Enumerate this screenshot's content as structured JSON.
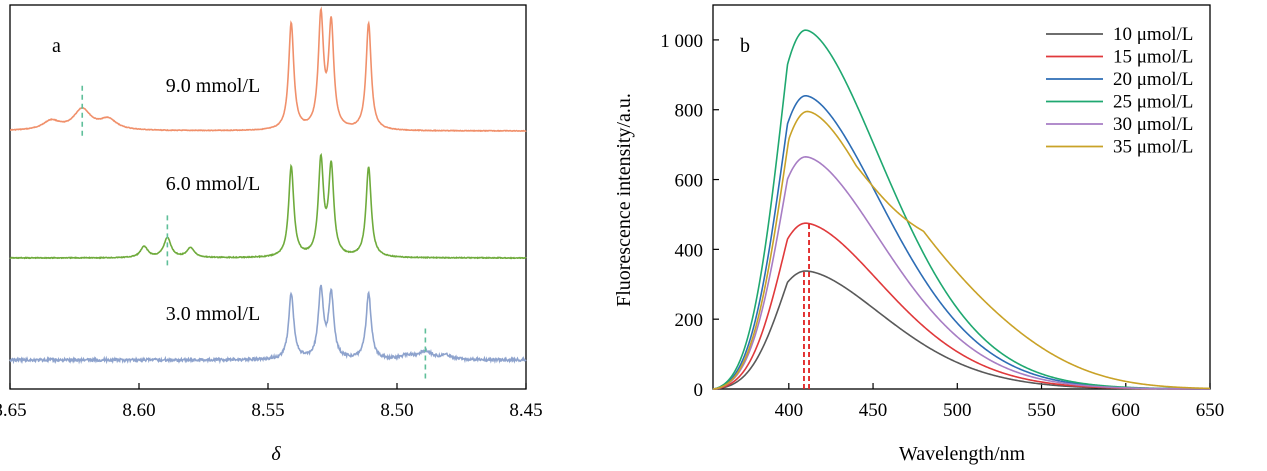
{
  "chart_data": [
    {
      "type": "line",
      "panel_label": "a",
      "xlabel": "δ",
      "ylabel": "",
      "xlim": [
        8.65,
        8.45
      ],
      "x_reversed": true,
      "x_ticks": [
        8.65,
        8.6,
        8.55,
        8.5,
        8.45
      ],
      "x_tick_labels": [
        "8.65",
        "8.60",
        "8.55",
        "8.50",
        "8.45"
      ],
      "y_axis_visible": false,
      "grid": false,
      "colors": {
        "9.0": "#f0906b",
        "6.0": "#6fab3c",
        "3.0": "#8ea3cd",
        "marker": "#5fbf9a"
      },
      "peaks_common": [
        {
          "x": 8.541,
          "h": 0.82,
          "w": 0.0012
        },
        {
          "x": 8.5295,
          "h": 0.86,
          "w": 0.0012
        },
        {
          "x": 8.5255,
          "h": 0.8,
          "w": 0.0012
        },
        {
          "x": 8.511,
          "h": 0.82,
          "w": 0.0012
        }
      ],
      "series": [
        {
          "name": "9.0 mmol/L",
          "label": "9.0 mmol/L",
          "marker_x": 8.622,
          "side_peaks": [
            {
              "x": 8.634,
              "h": 0.07,
              "w": 0.004
            },
            {
              "x": 8.622,
              "h": 0.16,
              "w": 0.004
            },
            {
              "x": 8.612,
              "h": 0.08,
              "w": 0.004
            }
          ]
        },
        {
          "name": "6.0 mmol/L",
          "label": "6.0 mmol/L",
          "marker_x": 8.589,
          "side_peaks": [
            {
              "x": 8.598,
              "h": 0.1,
              "w": 0.0017
            },
            {
              "x": 8.589,
              "h": 0.18,
              "w": 0.0017
            },
            {
              "x": 8.58,
              "h": 0.09,
              "w": 0.0017
            }
          ]
        },
        {
          "name": "3.0 mmol/L",
          "label": "3.0 mmol/L",
          "marker_x": 8.489,
          "side_peaks": [
            {
              "x": 8.496,
              "h": 0.05,
              "w": 0.003
            },
            {
              "x": 8.489,
              "h": 0.1,
              "w": 0.003
            },
            {
              "x": 8.481,
              "h": 0.05,
              "w": 0.003
            }
          ]
        }
      ]
    },
    {
      "type": "line",
      "panel_label": "b",
      "xlabel": "Wavelength/nm",
      "ylabel": "Fluorescence intensity/a.u.",
      "xlim": [
        355,
        650
      ],
      "ylim": [
        0,
        1100
      ],
      "x_ticks": [
        400,
        450,
        500,
        550,
        600,
        650
      ],
      "x_tick_labels": [
        "400",
        "450",
        "500",
        "550",
        "600",
        "650"
      ],
      "y_ticks": [
        0,
        200,
        400,
        600,
        800,
        1000
      ],
      "y_tick_labels": [
        "0",
        "200",
        "400",
        "600",
        "800",
        "1 000"
      ],
      "grid": false,
      "legend_position": "top-right",
      "peak_wavelength_lines": [
        409,
        412
      ],
      "peak_line_color": "#e02020",
      "series": [
        {
          "name": "10 μmol/L",
          "color": "#595959",
          "peak": 338,
          "peak_x": 410,
          "tail": 0
        },
        {
          "name": "15 μmol/L",
          "color": "#e0393b",
          "peak": 475,
          "peak_x": 410,
          "tail": 0
        },
        {
          "name": "20 μmol/L",
          "color": "#2d6db5",
          "peak": 840,
          "peak_x": 410,
          "tail": 0
        },
        {
          "name": "25 μmol/L",
          "color": "#1fa870",
          "peak": 1028,
          "peak_x": 410,
          "tail": 0
        },
        {
          "name": "30 μmol/L",
          "color": "#a77dc4",
          "peak": 665,
          "peak_x": 410,
          "tail": 0
        },
        {
          "name": "35 μmol/L",
          "color": "#c9a227",
          "peak": 795,
          "peak_x": 411,
          "tail": 1
        }
      ]
    }
  ]
}
